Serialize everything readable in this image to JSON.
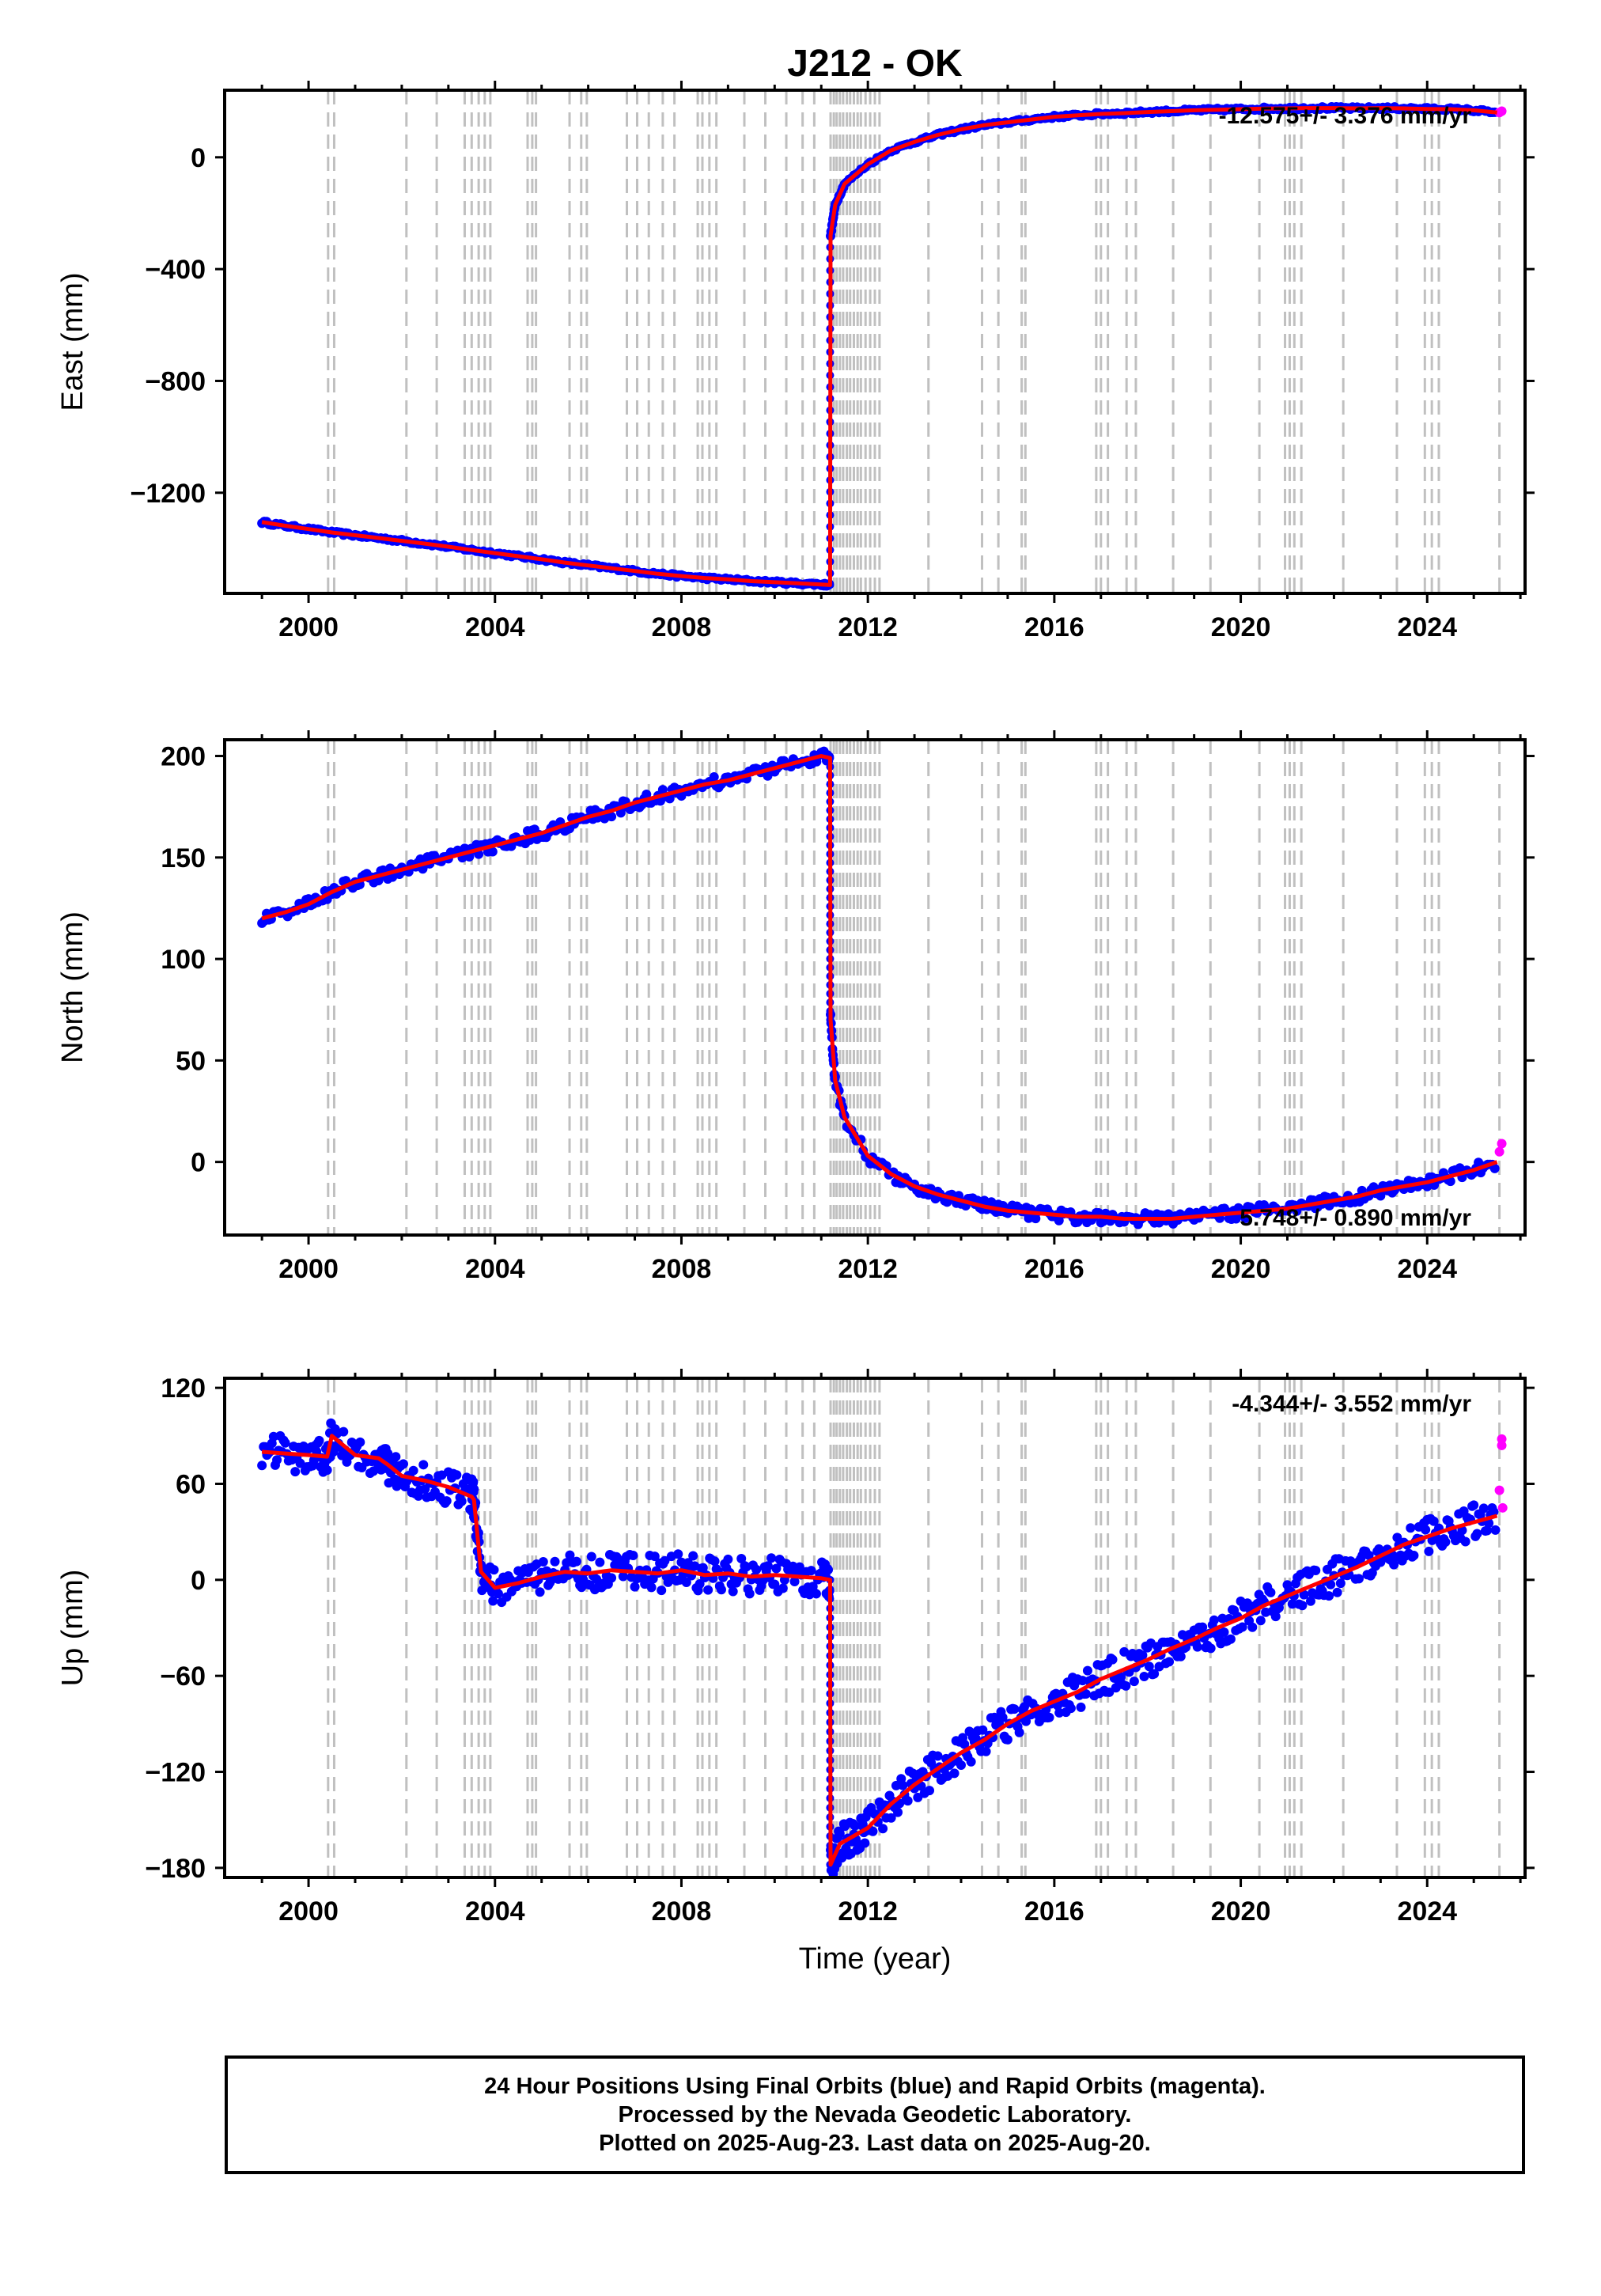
{
  "title": "J212 - OK",
  "xlabel": "Time (year)",
  "footer": {
    "line1": "24 Hour Positions Using Final Orbits (blue) and Rapid Orbits (magenta).",
    "line2": "Processed by the Nevada Geodetic Laboratory.",
    "line3": "Plotted on 2025-Aug-23. Last data on 2025-Aug-20."
  },
  "colors": {
    "final_orbits": "#0000ff",
    "rapid_orbits": "#ff00ff",
    "model": "#ff0000",
    "event_lines": "#c0c0c0"
  },
  "chart_data": [
    {
      "type": "scatter",
      "component": "East",
      "ylabel": "East (mm)",
      "rate_text": "-12.575+/- 3.376 mm/yr",
      "xlim": [
        1998.2,
        2026.1
      ],
      "ylim": [
        -1560,
        240
      ],
      "yticks": [
        0,
        -400,
        -800,
        -1200
      ],
      "xticks": [
        2000,
        2004,
        2008,
        2012,
        2016,
        2020,
        2024
      ],
      "x": [
        1999.0,
        1999.5,
        2000.0,
        2000.5,
        2001.0,
        2001.5,
        2002.0,
        2002.5,
        2003.0,
        2003.5,
        2004.0,
        2004.5,
        2005.0,
        2005.5,
        2006.0,
        2006.5,
        2007.0,
        2007.5,
        2008.0,
        2008.5,
        2009.0,
        2009.5,
        2010.0,
        2010.5,
        2011.0,
        2011.19,
        2011.2,
        2011.3,
        2011.5,
        2012.0,
        2012.5,
        2013.0,
        2013.5,
        2014.0,
        2014.5,
        2015.0,
        2015.5,
        2016.0,
        2016.5,
        2017.0,
        2017.5,
        2018.0,
        2018.5,
        2019.0,
        2019.5,
        2020.0,
        2020.5,
        2021.0,
        2021.5,
        2022.0,
        2022.5,
        2023.0,
        2023.5,
        2024.0,
        2024.5,
        2025.0,
        2025.5
      ],
      "y": [
        -1305,
        -1318,
        -1330,
        -1342,
        -1352,
        -1362,
        -1372,
        -1382,
        -1393,
        -1405,
        -1416,
        -1427,
        -1438,
        -1450,
        -1460,
        -1470,
        -1480,
        -1490,
        -1498,
        -1505,
        -1510,
        -1516,
        -1520,
        -1524,
        -1528,
        -1530,
        -280,
        -170,
        -95,
        -25,
        25,
        55,
        80,
        100,
        115,
        125,
        135,
        145,
        150,
        155,
        158,
        162,
        165,
        168,
        170,
        172,
        174,
        175,
        176,
        176,
        175,
        176,
        175,
        173,
        172,
        168,
        160
      ],
      "rapid_x": [
        2025.55,
        2025.6
      ],
      "rapid_y": [
        160,
        165
      ]
    },
    {
      "type": "scatter",
      "component": "North",
      "ylabel": "North (mm)",
      "rate_text": "5.748+/- 0.890 mm/yr",
      "xlim": [
        1998.2,
        2026.1
      ],
      "ylim": [
        -36,
        208
      ],
      "yticks": [
        0,
        50,
        100,
        150,
        200
      ],
      "xticks": [
        2000,
        2004,
        2008,
        2012,
        2016,
        2020,
        2024
      ],
      "x": [
        1999.0,
        1999.5,
        2000.0,
        2000.5,
        2001.0,
        2001.5,
        2002.0,
        2002.5,
        2003.0,
        2003.5,
        2004.0,
        2004.5,
        2005.0,
        2005.5,
        2006.0,
        2006.5,
        2007.0,
        2007.5,
        2008.0,
        2008.5,
        2009.0,
        2009.5,
        2010.0,
        2010.5,
        2011.0,
        2011.19,
        2011.2,
        2011.3,
        2011.5,
        2012.0,
        2012.5,
        2013.0,
        2013.5,
        2014.0,
        2014.5,
        2015.0,
        2015.5,
        2016.0,
        2016.5,
        2017.0,
        2017.5,
        2018.0,
        2018.5,
        2019.0,
        2019.5,
        2020.0,
        2020.5,
        2021.0,
        2021.5,
        2022.0,
        2022.5,
        2023.0,
        2023.5,
        2024.0,
        2024.5,
        2025.0,
        2025.5
      ],
      "y": [
        120,
        123,
        127,
        133,
        138,
        141,
        144,
        147,
        150,
        153,
        156,
        159,
        162,
        166,
        170,
        173,
        177,
        180,
        183,
        186,
        188,
        191,
        194,
        197,
        200,
        199,
        70,
        40,
        22,
        3,
        -6,
        -12,
        -16,
        -19,
        -22,
        -24,
        -25,
        -26,
        -27,
        -27,
        -28,
        -28,
        -28,
        -27,
        -26,
        -25,
        -24,
        -23,
        -21,
        -19,
        -17,
        -14,
        -12,
        -10,
        -7,
        -4,
        0
      ],
      "rapid_x": [
        2025.55,
        2025.6
      ],
      "rapid_y": [
        5,
        9
      ]
    },
    {
      "type": "scatter",
      "component": "Up",
      "ylabel": "Up (mm)",
      "rate_text": "-4.344+/- 3.552 mm/yr",
      "xlim": [
        1998.2,
        2026.1
      ],
      "ylim": [
        -186,
        126
      ],
      "yticks": [
        120,
        60,
        0,
        -60,
        -120,
        -180
      ],
      "xticks": [
        2000,
        2004,
        2008,
        2012,
        2016,
        2020,
        2024
      ],
      "x": [
        1999.0,
        1999.5,
        2000.0,
        2000.4,
        2000.5,
        2001.0,
        2001.5,
        2001.7,
        2002.0,
        2002.5,
        2003.0,
        2003.5,
        2003.55,
        2003.7,
        2004.0,
        2004.5,
        2005.0,
        2005.5,
        2006.0,
        2006.5,
        2007.0,
        2007.5,
        2008.0,
        2008.5,
        2009.0,
        2009.5,
        2010.0,
        2010.5,
        2011.0,
        2011.19,
        2011.2,
        2011.4,
        2011.7,
        2012.0,
        2012.5,
        2013.0,
        2013.5,
        2014.0,
        2014.5,
        2015.0,
        2015.5,
        2016.0,
        2016.5,
        2017.0,
        2017.5,
        2018.0,
        2018.5,
        2019.0,
        2019.5,
        2020.0,
        2020.5,
        2021.0,
        2021.5,
        2022.0,
        2022.5,
        2023.0,
        2023.5,
        2024.0,
        2024.5,
        2025.0,
        2025.5
      ],
      "y": [
        80,
        79,
        78,
        77,
        90,
        78,
        76,
        72,
        65,
        62,
        58,
        52,
        50,
        5,
        -5,
        -2,
        2,
        5,
        4,
        6,
        5,
        4,
        6,
        3,
        4,
        2,
        3,
        2,
        1,
        0,
        -178,
        -165,
        -160,
        -155,
        -140,
        -128,
        -118,
        -108,
        -100,
        -90,
        -82,
        -76,
        -70,
        -62,
        -56,
        -50,
        -43,
        -37,
        -30,
        -24,
        -16,
        -10,
        -4,
        2,
        8,
        15,
        22,
        27,
        32,
        36,
        40
      ],
      "rapid_x": [
        2025.55,
        2025.6,
        2025.6,
        2025.62
      ],
      "rapid_y": [
        56,
        84,
        88,
        45
      ]
    }
  ],
  "event_years": [
    2000.42,
    2000.55,
    2002.1,
    2002.75,
    2003.35,
    2003.5,
    2003.65,
    2003.78,
    2003.9,
    2004.7,
    2004.8,
    2004.88,
    2005.6,
    2005.85,
    2005.97,
    2006.83,
    2007.05,
    2007.3,
    2007.6,
    2007.85,
    2008.35,
    2008.45,
    2008.6,
    2008.75,
    2009.35,
    2009.8,
    2010.25,
    2010.6,
    2010.85,
    2011.2,
    2011.27,
    2011.33,
    2011.4,
    2011.47,
    2011.55,
    2011.62,
    2011.7,
    2011.78,
    2011.85,
    2011.95,
    2012.05,
    2012.15,
    2012.25,
    2013.3,
    2014.45,
    2014.8,
    2015.3,
    2015.38,
    2016.9,
    2017.0,
    2017.15,
    2017.55,
    2017.75,
    2018.55,
    2019.35,
    2020.4,
    2020.95,
    2021.05,
    2021.15,
    2021.3,
    2022.2,
    2023.35,
    2023.95,
    2024.1,
    2024.25,
    2025.55
  ]
}
